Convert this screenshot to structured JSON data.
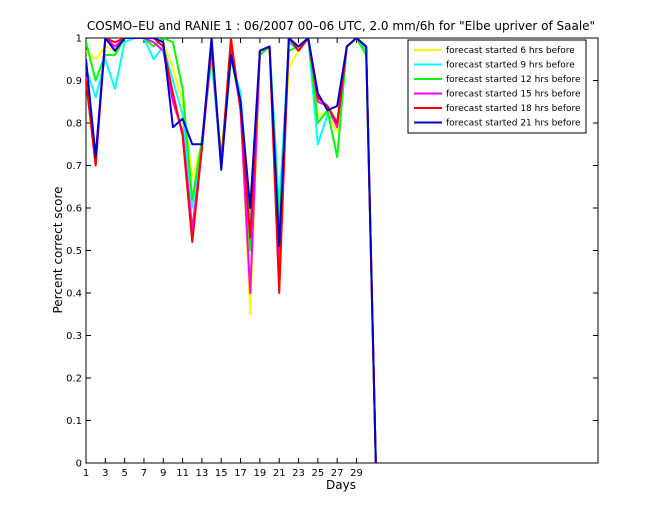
{
  "chart_data": {
    "type": "line",
    "title": "COSMO–EU and RANIE 1 : 06/2007 00–06 UTC, 2.0 mm/6h for \"Elbe upriver of Saale\"",
    "xlabel": "Days",
    "ylabel": "Percent correct score",
    "xlim": [
      1,
      54
    ],
    "ylim": [
      0,
      1
    ],
    "x_ticks": [
      1,
      3,
      5,
      7,
      9,
      11,
      13,
      15,
      17,
      19,
      21,
      23,
      25,
      27,
      29
    ],
    "y_ticks": [
      0,
      0.1,
      0.2,
      0.3,
      0.4,
      0.5,
      0.6,
      0.7,
      0.8,
      0.9,
      1
    ],
    "y_tick_labels": [
      "0",
      "0.1",
      "0.2",
      "0.3",
      "0.4",
      "0.5",
      "0.6",
      "0.7",
      "0.8",
      "0.9",
      "1"
    ],
    "grid": false,
    "legend_position": "top-right",
    "x": [
      1,
      2,
      3,
      4,
      5,
      6,
      7,
      8,
      9,
      10,
      11,
      12,
      13,
      14,
      15,
      16,
      17,
      18,
      19,
      20,
      21,
      22,
      23,
      24,
      25,
      26,
      27,
      28,
      29,
      30,
      31
    ],
    "series": [
      {
        "name": "forecast started 6 hrs before",
        "color": "#ffff00",
        "values": [
          0.97,
          0.95,
          0.98,
          0.97,
          1.0,
          1.0,
          1.0,
          1.0,
          0.99,
          0.93,
          0.85,
          0.67,
          0.75,
          0.98,
          0.72,
          0.95,
          0.85,
          0.35,
          0.96,
          0.98,
          0.55,
          0.93,
          0.97,
          1.0,
          0.82,
          0.82,
          0.78,
          0.98,
          1.0,
          0.98,
          0.0
        ]
      },
      {
        "name": "forecast started 9 hrs before",
        "color": "#00ffff",
        "values": [
          0.93,
          0.86,
          0.95,
          0.88,
          0.99,
          1.0,
          1.0,
          0.95,
          0.98,
          0.9,
          0.82,
          0.6,
          0.76,
          0.95,
          0.7,
          0.95,
          0.87,
          0.55,
          0.96,
          0.98,
          0.6,
          0.99,
          0.97,
          1.0,
          0.75,
          0.82,
          0.8,
          0.98,
          1.0,
          0.97,
          0.0
        ]
      },
      {
        "name": "forecast started 12 hrs before",
        "color": "#00ff00",
        "values": [
          0.99,
          0.9,
          0.96,
          0.96,
          1.0,
          1.0,
          1.0,
          0.98,
          1.0,
          0.99,
          0.88,
          0.62,
          0.76,
          0.96,
          0.72,
          0.96,
          0.84,
          0.5,
          0.96,
          0.98,
          0.55,
          0.97,
          0.98,
          1.0,
          0.8,
          0.83,
          0.72,
          0.98,
          1.0,
          0.96,
          0.0
        ]
      },
      {
        "name": "forecast started 15 hrs before",
        "color": "#ff00ff",
        "values": [
          0.91,
          0.72,
          1.0,
          0.98,
          1.0,
          1.0,
          1.0,
          0.99,
          0.97,
          0.85,
          0.78,
          0.55,
          0.74,
          0.98,
          0.7,
          0.98,
          0.83,
          0.4,
          0.97,
          0.98,
          0.45,
          1.0,
          0.97,
          1.0,
          0.85,
          0.84,
          0.79,
          0.98,
          1.0,
          0.98,
          0.0
        ]
      },
      {
        "name": "forecast started 18 hrs before",
        "color": "#ff0000",
        "values": [
          0.9,
          0.7,
          1.0,
          0.99,
          1.0,
          1.0,
          1.0,
          1.0,
          0.98,
          0.87,
          0.77,
          0.52,
          0.74,
          0.99,
          0.7,
          1.0,
          0.83,
          0.53,
          0.97,
          0.98,
          0.4,
          1.0,
          0.97,
          1.0,
          0.86,
          0.84,
          0.8,
          0.98,
          1.0,
          0.98,
          0.0
        ]
      },
      {
        "name": "forecast started 21 hrs before",
        "color": "#0000cd",
        "values": [
          0.95,
          0.72,
          1.0,
          0.97,
          1.0,
          1.0,
          1.0,
          1.0,
          0.99,
          0.79,
          0.81,
          0.75,
          0.75,
          1.0,
          0.69,
          0.96,
          0.85,
          0.6,
          0.97,
          0.98,
          0.51,
          1.0,
          0.98,
          1.0,
          0.87,
          0.83,
          0.84,
          0.98,
          1.0,
          0.98,
          0.0
        ]
      }
    ]
  }
}
